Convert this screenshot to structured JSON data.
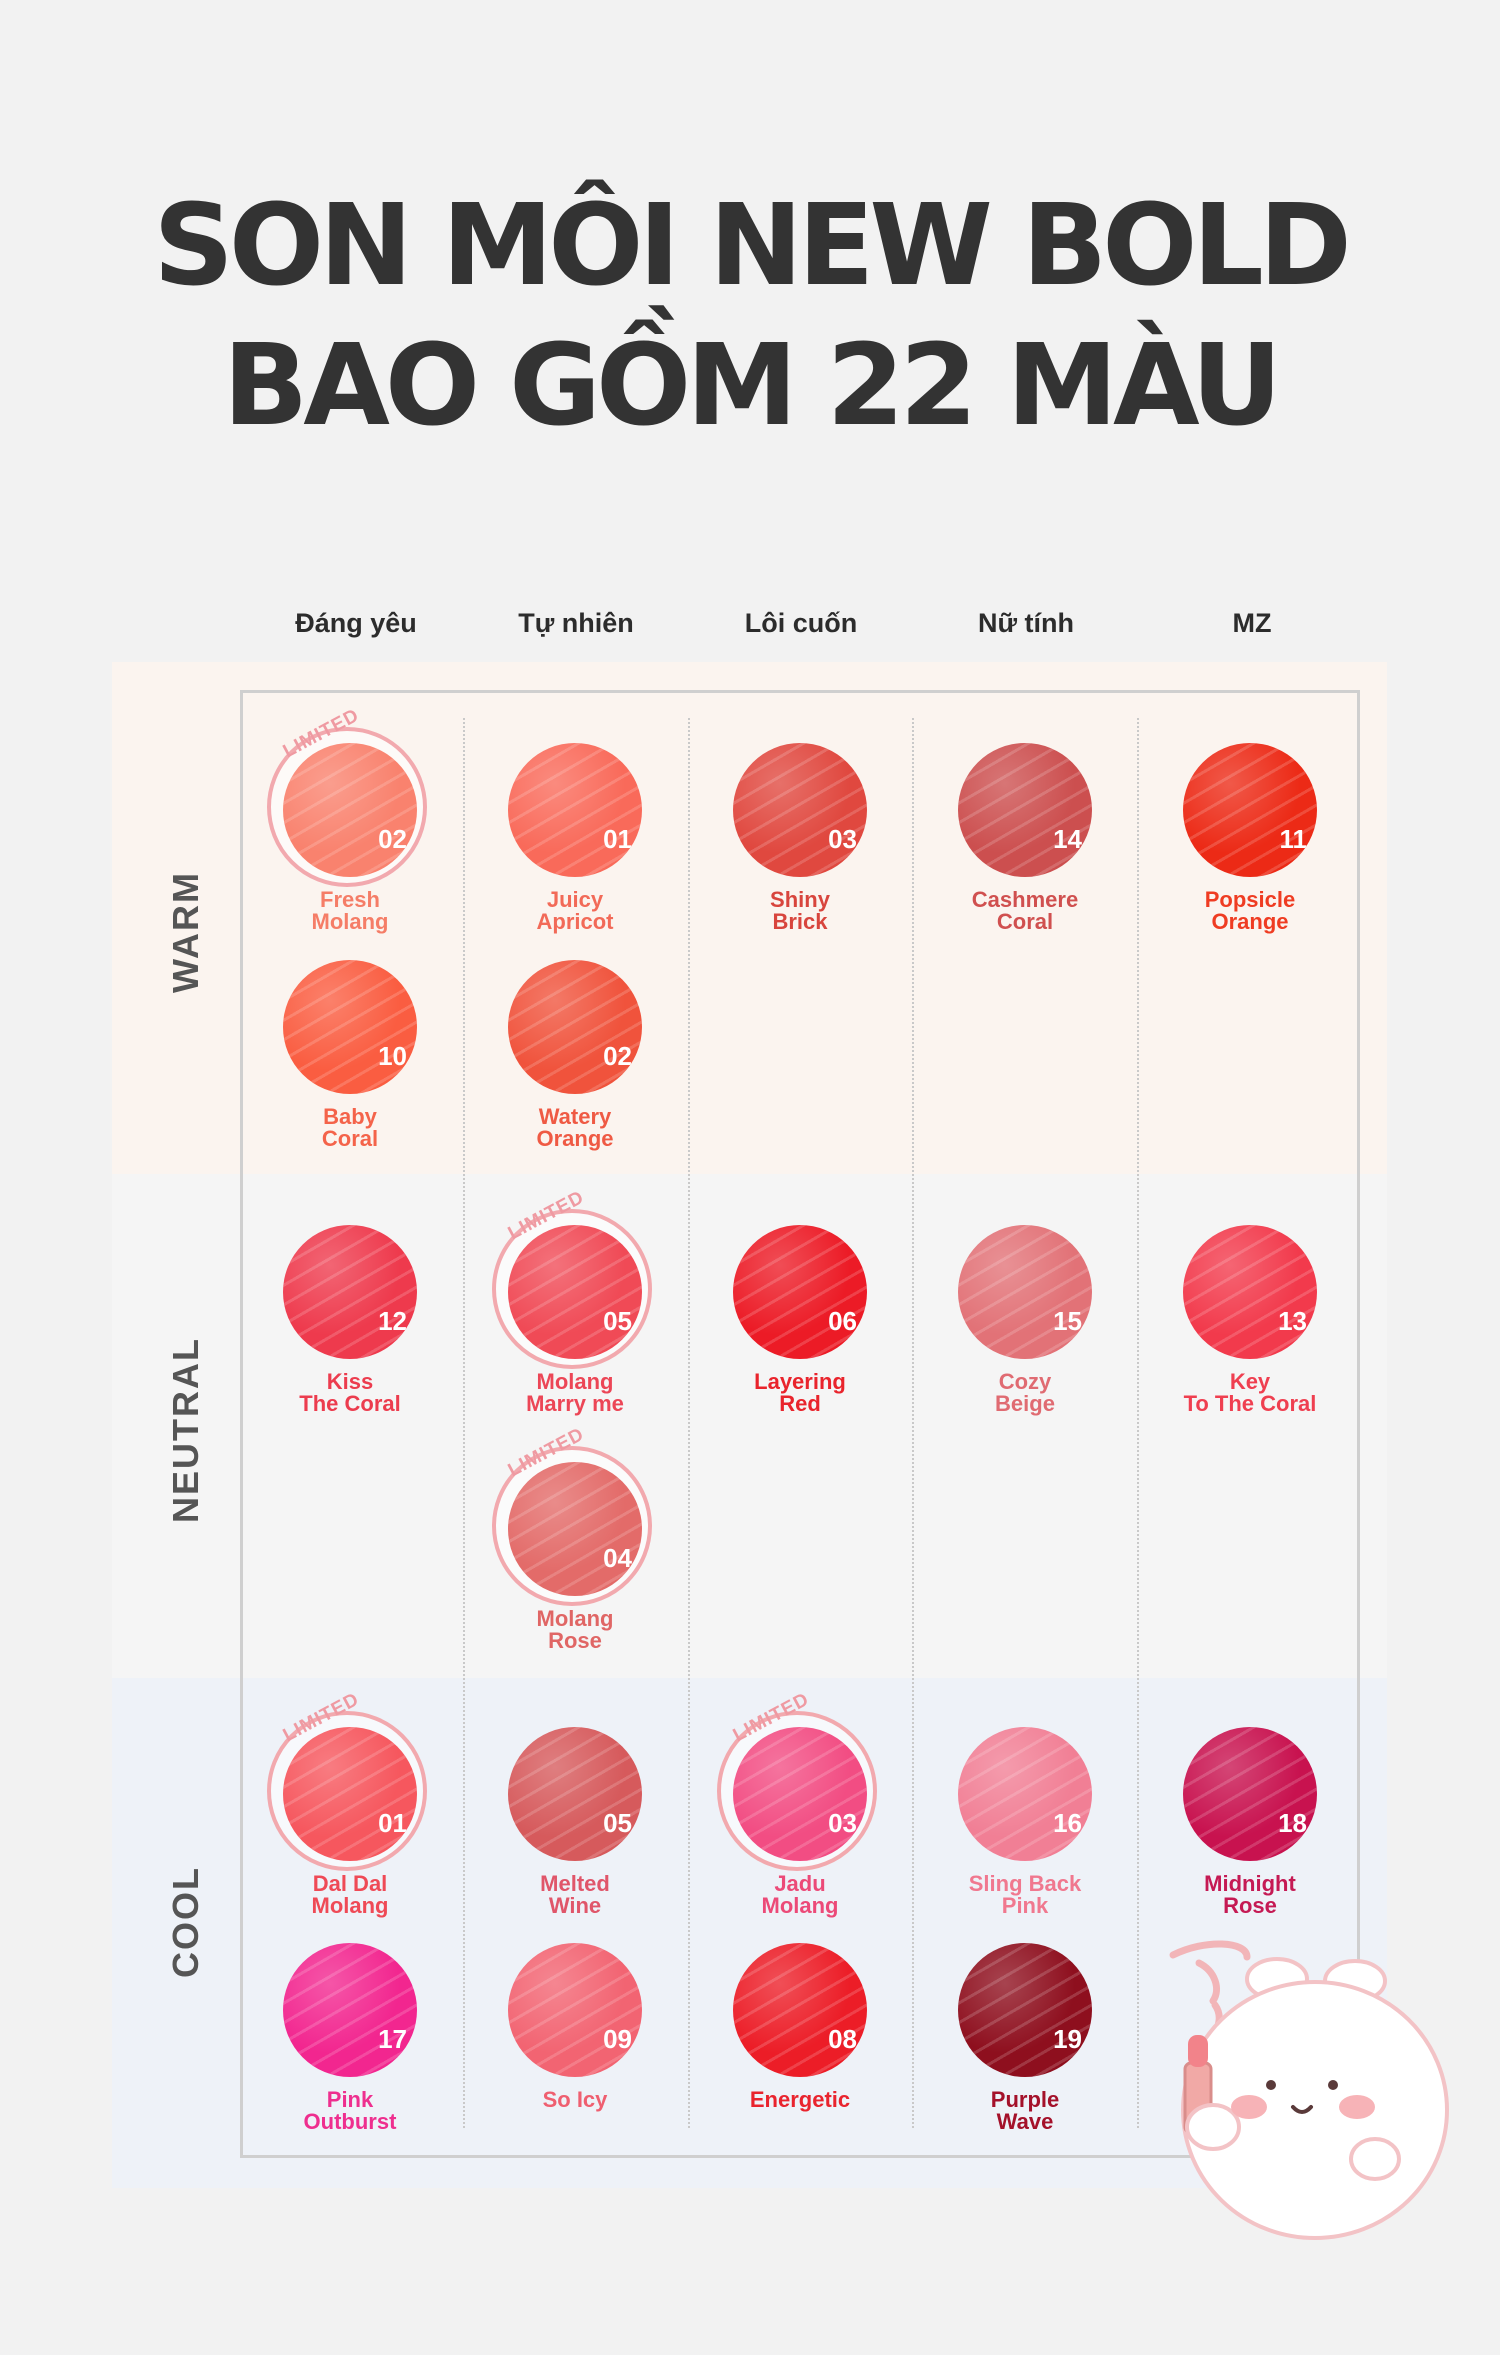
{
  "title": {
    "line1": "SON MÔI NEW BOLD",
    "line2": "BAO GỒM 22 MÀU"
  },
  "columns": [
    "Đáng yêu",
    "Tự nhiên",
    "Lôi cuốn",
    "Nữ tính",
    "MZ"
  ],
  "rows": [
    "WARM",
    "NEUTRAL",
    "COOL"
  ],
  "limited_label": "LIMITED",
  "swatches": [
    {
      "code": "02",
      "name1": "Fresh",
      "name2": "Molang",
      "color": "#f9826e",
      "text_color": "#f57d67",
      "limited": true
    },
    {
      "code": "01",
      "name1": "Juicy",
      "name2": "Apricot",
      "color": "#f96a5a",
      "text_color": "#f26a58",
      "limited": false
    },
    {
      "code": "03",
      "name1": "Shiny",
      "name2": "Brick",
      "color": "#e0483f",
      "text_color": "#d8453d",
      "limited": false
    },
    {
      "code": "14",
      "name1": "Cashmere",
      "name2": "Coral",
      "color": "#cc4f4f",
      "text_color": "#d0504f",
      "limited": false
    },
    {
      "code": "11",
      "name1": "Popsicle",
      "name2": "Orange",
      "color": "#ec2a16",
      "text_color": "#ef3c22",
      "limited": false
    },
    {
      "code": "10",
      "name1": "Baby",
      "name2": "Coral",
      "color": "#fa5d41",
      "text_color": "#f4634a",
      "limited": false
    },
    {
      "code": "02",
      "name1": "Watery",
      "name2": "Orange",
      "color": "#f0533c",
      "text_color": "#ef5a44",
      "limited": false
    },
    {
      "code": "12",
      "name1": "Kiss",
      "name2": "The Coral",
      "color": "#ee3a4d",
      "text_color": "#ec3c4e",
      "limited": false
    },
    {
      "code": "05",
      "name1": "Molang",
      "name2": "Marry me",
      "color": "#f04a56",
      "text_color": "#ec4656",
      "limited": true
    },
    {
      "code": "06",
      "name1": "Layering",
      "name2": "Red",
      "color": "#ec1b26",
      "text_color": "#e9242c",
      "limited": false
    },
    {
      "code": "15",
      "name1": "Cozy",
      "name2": "Beige",
      "color": "#e27277",
      "text_color": "#e06b72",
      "limited": false
    },
    {
      "code": "13",
      "name1": "Key",
      "name2": "To The Coral",
      "color": "#f23a4c",
      "text_color": "#ef3f50",
      "limited": false
    },
    {
      "code": "04",
      "name1": "Molang",
      "name2": "Rose",
      "color": "#e36b69",
      "text_color": "#e06665",
      "limited": true
    },
    {
      "code": "01",
      "name1": "Dal Dal",
      "name2": "Molang",
      "color": "#f6575e",
      "text_color": "#ef4a56",
      "limited": true
    },
    {
      "code": "05",
      "name1": "Melted",
      "name2": "Wine",
      "color": "#d65a5c",
      "text_color": "#e0566a",
      "limited": false
    },
    {
      "code": "03",
      "name1": "Jadu",
      "name2": "Molang",
      "color": "#f24d83",
      "text_color": "#ec4a78",
      "limited": true
    },
    {
      "code": "16",
      "name1": "Sling Back",
      "name2": "Pink",
      "color": "#f17f95",
      "text_color": "#f0788f",
      "limited": false
    },
    {
      "code": "18",
      "name1": "Midnight",
      "name2": "Rose",
      "color": "#c8124f",
      "text_color": "#c51a54",
      "limited": false
    },
    {
      "code": "17",
      "name1": "Pink",
      "name2": "Outburst",
      "color": "#f2268f",
      "text_color": "#ee2f8f",
      "limited": false
    },
    {
      "code": "09",
      "name1": "So Icy",
      "name2": "",
      "color": "#f26472",
      "text_color": "#ef5f70",
      "limited": false
    },
    {
      "code": "08",
      "name1": "Energetic",
      "name2": "",
      "color": "#ec1d27",
      "text_color": "#e9242e",
      "limited": false
    },
    {
      "code": "19",
      "name1": "Purple",
      "name2": "Wave",
      "color": "#8e0f1e",
      "text_color": "#a4112a",
      "limited": false
    }
  ]
}
